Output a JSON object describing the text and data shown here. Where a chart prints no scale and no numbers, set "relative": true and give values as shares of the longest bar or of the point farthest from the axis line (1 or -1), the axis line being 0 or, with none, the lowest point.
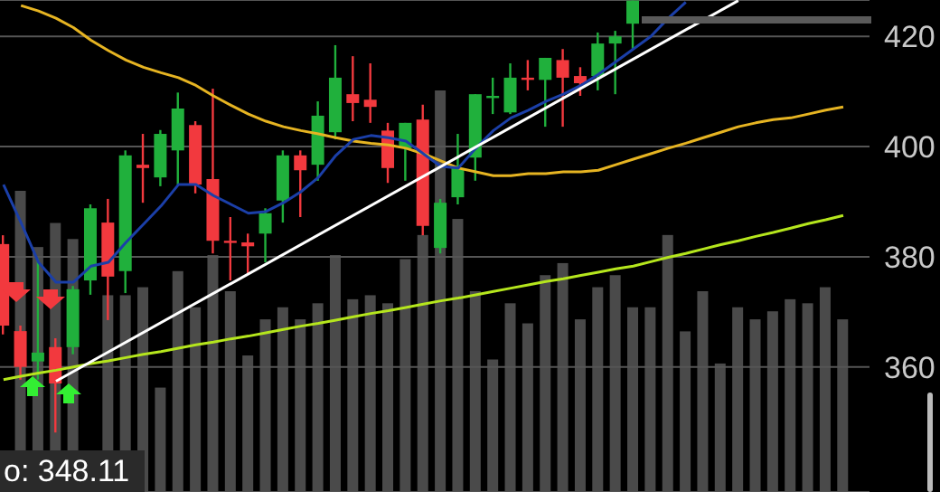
{
  "chart_data": [
    {
      "type": "candlestick",
      "categories": [
        null,
        null,
        null,
        null,
        null,
        null,
        null,
        null,
        null,
        null,
        null,
        null,
        null,
        null,
        null,
        null,
        null,
        null,
        null,
        null,
        null,
        null,
        null,
        null,
        null,
        null,
        null,
        null,
        null,
        null,
        null,
        null,
        null,
        null,
        null,
        null,
        null,
        null,
        null,
        null,
        null,
        null,
        null,
        null,
        null,
        null,
        null,
        null,
        null
      ],
      "ohlc": [
        [
          382.3,
          383.9,
          365.9,
          367.5
        ],
        [
          366.5,
          367.5,
          357.7,
          360.0
        ],
        [
          361.0,
          379.7,
          357.7,
          362.6
        ],
        [
          363.6,
          365.2,
          348.1,
          357.0
        ],
        [
          363.6,
          374.7,
          362.3,
          374.1
        ],
        [
          375.7,
          389.5,
          373.1,
          388.8
        ],
        [
          386.2,
          390.5,
          368.5,
          376.4
        ],
        [
          377.4,
          399.3,
          373.4,
          398.4
        ],
        [
          396.7,
          402.3,
          389.8,
          396.1
        ],
        [
          394.4,
          403.0,
          392.8,
          402.3
        ],
        [
          399.3,
          409.8,
          393.1,
          406.9
        ],
        [
          403.9,
          404.6,
          391.5,
          393.1
        ],
        [
          394.1,
          410.5,
          380.6,
          382.9
        ],
        [
          382.9,
          387.2,
          375.7,
          382.6
        ],
        [
          382.6,
          384.2,
          376.7,
          381.9
        ],
        [
          384.2,
          388.8,
          379.0,
          387.9
        ],
        [
          390.2,
          399.3,
          386.2,
          398.4
        ],
        [
          398.4,
          399.3,
          387.2,
          395.7
        ],
        [
          396.7,
          408.2,
          393.8,
          405.6
        ],
        [
          402.6,
          418.4,
          401.3,
          412.5
        ],
        [
          409.5,
          416.4,
          404.6,
          407.9
        ],
        [
          408.5,
          415.1,
          404.3,
          407.2
        ],
        [
          402.9,
          404.3,
          393.4,
          396.1
        ],
        [
          399.7,
          404.3,
          393.8,
          404.3
        ],
        [
          404.9,
          407.6,
          383.9,
          385.6
        ],
        [
          381.6,
          390.5,
          380.6,
          389.8
        ],
        [
          390.8,
          402.3,
          389.5,
          396.1
        ],
        [
          398.0,
          409.5,
          393.8,
          409.5
        ],
        [
          408.8,
          412.5,
          405.9,
          409.2
        ],
        [
          406.2,
          415.1,
          405.9,
          412.5
        ],
        [
          412.5,
          415.7,
          410.2,
          412.1
        ],
        [
          412.1,
          416.1,
          403.6,
          416.1
        ],
        [
          415.7,
          417.7,
          403.6,
          412.5
        ],
        [
          412.8,
          414.4,
          409.2,
          411.5
        ],
        [
          412.8,
          420.7,
          410.2,
          418.7
        ],
        [
          418.7,
          421.0,
          409.5,
          420.0
        ],
        [
          422.3,
          426.5,
          417.7,
          426.5
        ],
        null,
        null,
        null,
        null,
        null,
        null,
        null,
        null,
        null,
        null,
        null,
        null
      ],
      "colors": [
        "#f2393e",
        "#f2393e",
        "#20b03c",
        "#f2393e",
        "#20b03c",
        "#20b03c",
        "#f2393e",
        "#20b03c",
        "#f2393e",
        "#20b03c",
        "#20b03c",
        "#f2393e",
        "#f2393e",
        "#f2393e",
        "#f2393e",
        "#20b03c",
        "#20b03c",
        "#f2393e",
        "#20b03c",
        "#20b03c",
        "#f2393e",
        "#f2393e",
        "#f2393e",
        "#20b03c",
        "#f2393e",
        "#20b03c",
        "#20b03c",
        "#20b03c",
        "#20b03c",
        "#20b03c",
        "#f2393e",
        "#20b03c",
        "#f2393e",
        "#f2393e",
        "#20b03c",
        "#20b03c",
        "#20b03c",
        null,
        null,
        null,
        null,
        null,
        null,
        null,
        null,
        null,
        null,
        null,
        null
      ],
      "series": [
        {
          "type": "line",
          "color": "#e6b422",
          "values": [
            null,
            425.6,
            424.6,
            423.3,
            421.6,
            419.3,
            417.4,
            415.7,
            414.4,
            413.4,
            412.5,
            411.1,
            409.2,
            407.5,
            405.9,
            404.6,
            403.6,
            402.9,
            402.3,
            401.6,
            401.0,
            400.6,
            400.3,
            399.7,
            398.7,
            397.4,
            396.1,
            395.4,
            394.7,
            394.7,
            395.1,
            395.1,
            395.4,
            395.4,
            395.7,
            396.7,
            397.7,
            398.7,
            399.7,
            400.6,
            401.6,
            402.6,
            403.6,
            404.3,
            404.9,
            405.2,
            405.9,
            406.6,
            407.2
          ]
        },
        {
          "type": "line",
          "color": "#b5e61d",
          "values": [
            357.7,
            358.3,
            358.9,
            359.4,
            360.0,
            360.6,
            361.1,
            361.7,
            362.3,
            362.8,
            363.4,
            364.0,
            364.5,
            365.1,
            365.6,
            366.2,
            366.8,
            367.4,
            367.9,
            368.5,
            369.1,
            369.7,
            370.2,
            370.8,
            371.4,
            372.0,
            372.5,
            373.1,
            373.7,
            374.3,
            374.9,
            375.5,
            376.0,
            376.6,
            377.2,
            377.8,
            378.3,
            379.1,
            379.9,
            380.6,
            381.4,
            382.2,
            382.9,
            383.7,
            384.4,
            385.2,
            386.0,
            386.7,
            387.5
          ]
        },
        {
          "type": "line",
          "color": "#1b3fa8",
          "values": [
            393.1,
            386.2,
            379.0,
            375.4,
            375.4,
            378.3,
            379.0,
            382.6,
            385.9,
            389.2,
            393.1,
            393.1,
            391.1,
            389.5,
            387.9,
            388.2,
            389.8,
            391.8,
            394.4,
            398.4,
            401.3,
            402.0,
            401.6,
            401.0,
            398.7,
            396.4,
            396.1,
            399.7,
            402.9,
            405.2,
            406.6,
            408.2,
            409.5,
            411.1,
            413.1,
            415.4,
            417.7,
            420.0,
            423.3,
            426.2,
            null,
            null,
            null,
            null,
            null,
            null,
            null,
            null,
            null
          ]
        },
        {
          "type": "line",
          "color": "#ffffff",
          "values": [
            null,
            null,
            null,
            357.4,
            null,
            null,
            null,
            null,
            null,
            null,
            null,
            null,
            null,
            null,
            null,
            null,
            null,
            null,
            null,
            null,
            null,
            null,
            null,
            null,
            null,
            null,
            null,
            null,
            null,
            null,
            null,
            null,
            null,
            null,
            null,
            null,
            null,
            null,
            null,
            null,
            null,
            null,
            426.5,
            null,
            null,
            null,
            null,
            null,
            null
          ]
        }
      ],
      "ylim": [
        337.3,
        426.6
      ],
      "yticks": [
        360,
        380,
        400,
        420
      ],
      "grid": "y",
      "tick_labels": "y",
      "annotations": [
        "o: 348.11"
      ]
    },
    {
      "type": "bar",
      "relative": true,
      "tick_labels": false,
      "color": "#4a4a4a",
      "categories": [
        null,
        null,
        null,
        null,
        null,
        null,
        null,
        null,
        null,
        null,
        null,
        null,
        null,
        null,
        null,
        null,
        null,
        null,
        null,
        null,
        null,
        null,
        null,
        null,
        null,
        null,
        null,
        null,
        null,
        null,
        null,
        null,
        null,
        null,
        null,
        null,
        null,
        null,
        null,
        null,
        null,
        null,
        null,
        null,
        null,
        null,
        null,
        null,
        null
      ],
      "values": [
        null,
        0.75,
        0.61,
        0.67,
        0.63,
        null,
        0.49,
        0.49,
        0.51,
        0.26,
        0.55,
        0.46,
        0.59,
        0.5,
        0.34,
        0.43,
        0.46,
        0.43,
        0.47,
        0.59,
        0.48,
        0.49,
        0.47,
        0.58,
        0.64,
        1,
        0.68,
        0.5,
        0.33,
        0.47,
        0.42,
        0.54,
        0.57,
        0.43,
        0.51,
        0.54,
        0.46,
        0.46,
        0.64,
        0.4,
        0.5,
        0.32,
        0.46,
        0.43,
        0.45,
        0.48,
        0.47,
        0.51,
        0.43
      ]
    }
  ]
}
